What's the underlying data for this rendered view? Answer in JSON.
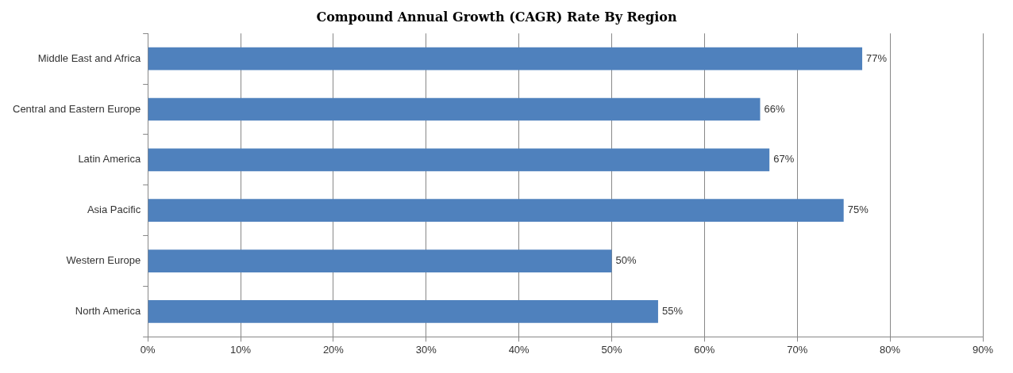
{
  "chart_data": {
    "type": "bar",
    "orientation": "horizontal",
    "title": "Compound Annual Growth (CAGR) Rate By Region",
    "categories": [
      "Middle East and Africa",
      "Central and Eastern Europe",
      "Latin America",
      "Asia Pacific",
      "Western Europe",
      "North America"
    ],
    "values": [
      77,
      66,
      67,
      75,
      50,
      55
    ],
    "color": "#4f81bd",
    "xlim": [
      0,
      90
    ],
    "xticks": [
      {
        "value": 0,
        "label": "0%"
      },
      {
        "value": 10,
        "label": "10%"
      },
      {
        "value": 20,
        "label": "20%"
      },
      {
        "value": 30,
        "label": "30%"
      },
      {
        "value": 40,
        "label": "40%"
      },
      {
        "value": 50,
        "label": "50%"
      },
      {
        "value": 60,
        "label": "60%"
      },
      {
        "value": 70,
        "label": "70%"
      },
      {
        "value": 80,
        "label": "80%"
      },
      {
        "value": 90,
        "label": "90%"
      }
    ],
    "value_labels": [
      "77%",
      "66%",
      "67%",
      "75%",
      "50%",
      "55%"
    ],
    "grid": "x",
    "legend": false
  }
}
